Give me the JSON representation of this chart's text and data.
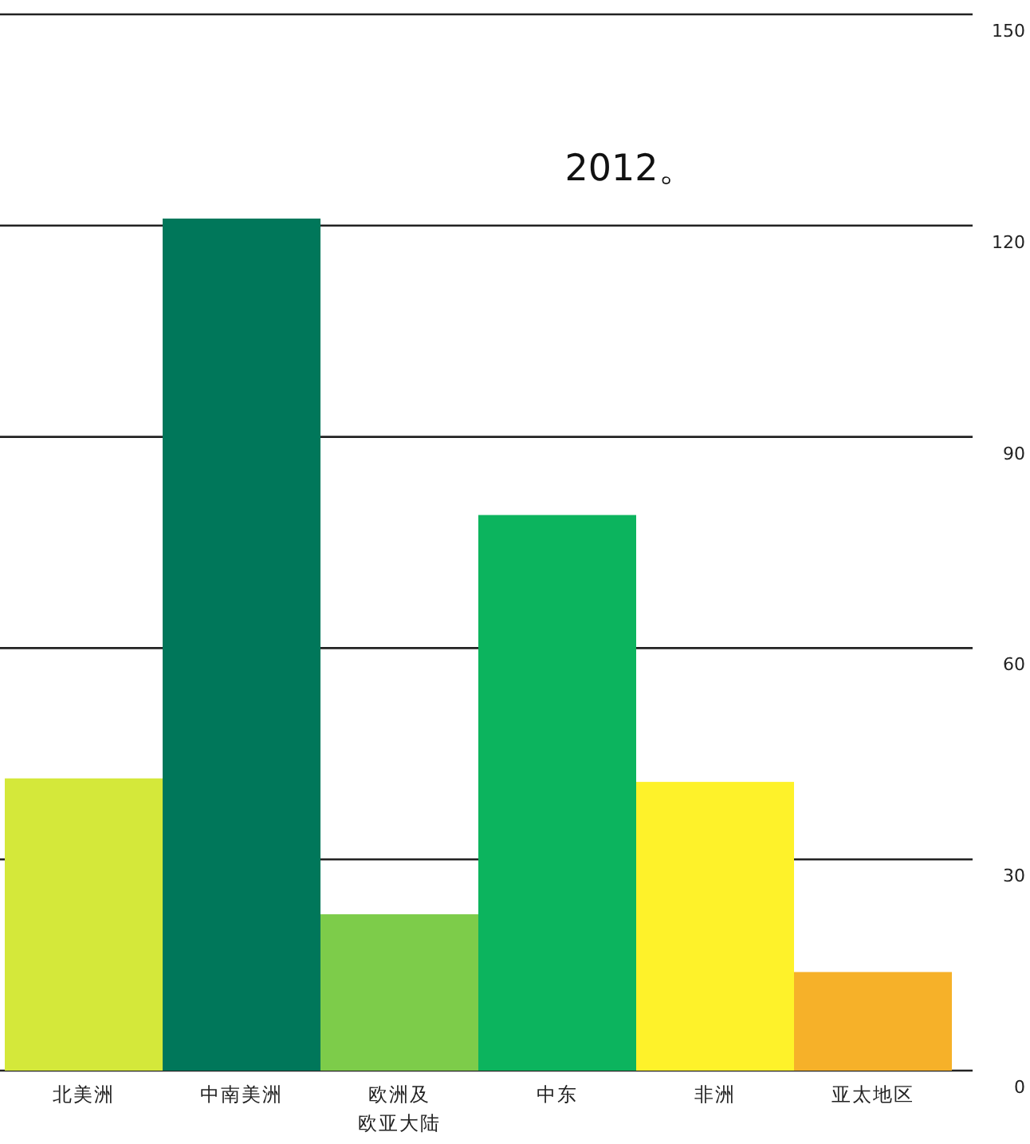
{
  "chart_data": {
    "type": "bar",
    "categories": [
      "北美洲",
      "中南美洲",
      "欧洲及欧亚大陆",
      "中东",
      "非洲",
      "亚太地区"
    ],
    "values": [
      41.5,
      121,
      22.2,
      78.9,
      41,
      14
    ],
    "colors": [
      "#d4e83a",
      "#00775a",
      "#7dcc4a",
      "#0cb45e",
      "#fef22a",
      "#f6b129"
    ],
    "ylim": [
      0,
      150
    ],
    "yticks": [
      0,
      30,
      60,
      90,
      120,
      150
    ],
    "grid": "y",
    "annotations": [
      "2012。"
    ]
  }
}
